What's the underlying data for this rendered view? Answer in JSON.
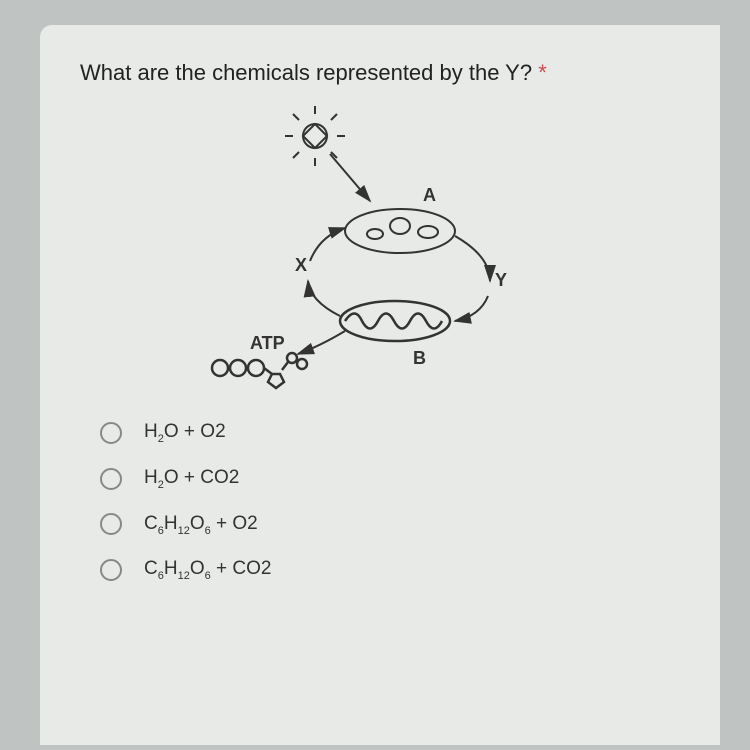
{
  "question_text": "What are the chemicals represented by the Y? ",
  "asterisk": "*",
  "diagram": {
    "labels": {
      "A": "A",
      "B": "B",
      "X": "X",
      "Y": "Y",
      "ATP": "ATP"
    },
    "stroke_color": "#333333",
    "stroke_width": 2,
    "font_size": 18
  },
  "options": [
    {
      "html": "H<sub>2</sub>O + O2"
    },
    {
      "html": "H<sub>2</sub>O + CO2"
    },
    {
      "html": "C<sub>6</sub>H<sub>12</sub>O<sub>6</sub> + O2"
    },
    {
      "html": "C<sub>6</sub>H<sub>12</sub>O<sub>6</sub> + CO2"
    }
  ],
  "colors": {
    "page_bg": "#bfc4c2",
    "card_bg": "#e8eae7",
    "text": "#222222",
    "radio_border": "#888888"
  }
}
